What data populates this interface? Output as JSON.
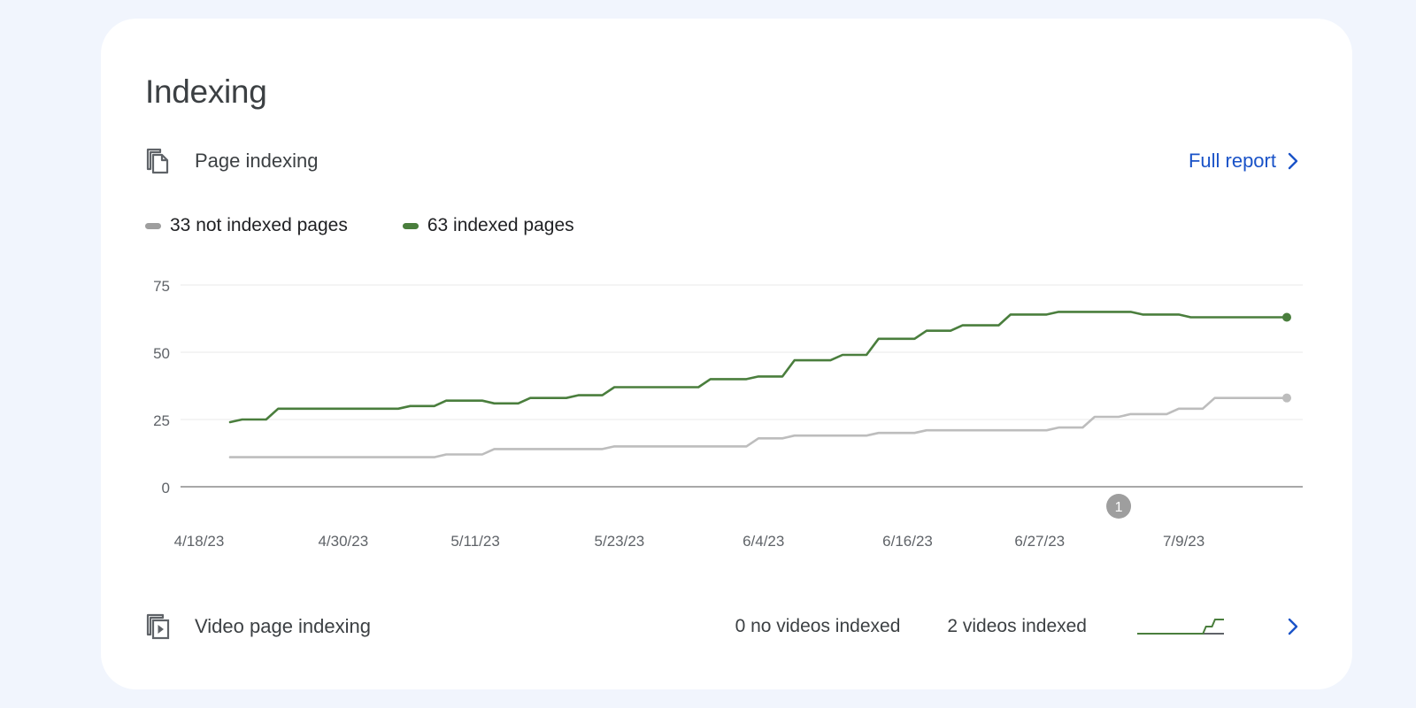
{
  "card": {
    "title": "Indexing"
  },
  "page_indexing": {
    "label": "Page indexing",
    "full_report_label": "Full report",
    "legend": [
      {
        "label": "33 not indexed pages",
        "color": "#9e9e9e"
      },
      {
        "label": "63 indexed pages",
        "color": "#4a7e3d"
      }
    ]
  },
  "video_indexing": {
    "label": "Video page indexing",
    "no_videos_label": "0 no videos indexed",
    "videos_label": "2 videos indexed"
  },
  "chart_data": {
    "type": "line",
    "title": "Page indexing",
    "ylim": [
      0,
      75
    ],
    "yticks": [
      "75",
      "50",
      "25",
      "0"
    ],
    "ytick_values": [
      75,
      50,
      25,
      0
    ],
    "xtick_labels": [
      "4/18/23",
      "4/30/23",
      "5/11/23",
      "5/23/23",
      "6/4/23",
      "6/16/23",
      "6/27/23",
      "7/9/23"
    ],
    "xtick_index": [
      0,
      12,
      23,
      35,
      47,
      59,
      70,
      82
    ],
    "annotation": {
      "label": "1",
      "index": 74
    },
    "series": [
      {
        "name": "63 indexed pages",
        "color": "#4a7e3d",
        "values": [
          24,
          25,
          25,
          25,
          29,
          29,
          29,
          29,
          29,
          29,
          29,
          29,
          29,
          29,
          29,
          30,
          30,
          30,
          32,
          32,
          32,
          32,
          31,
          31,
          31,
          33,
          33,
          33,
          33,
          34,
          34,
          34,
          37,
          37,
          37,
          37,
          37,
          37,
          37,
          37,
          40,
          40,
          40,
          40,
          41,
          41,
          41,
          47,
          47,
          47,
          47,
          49,
          49,
          49,
          55,
          55,
          55,
          55,
          58,
          58,
          58,
          60,
          60,
          60,
          60,
          64,
          64,
          64,
          64,
          65,
          65,
          65,
          65,
          65,
          65,
          65,
          64,
          64,
          64,
          64,
          63,
          63,
          63,
          63,
          63,
          63,
          63,
          63,
          63
        ]
      },
      {
        "name": "33 not indexed pages",
        "color": "#bdbdbd",
        "values": [
          11,
          11,
          11,
          11,
          11,
          11,
          11,
          11,
          11,
          11,
          11,
          11,
          11,
          11,
          11,
          11,
          11,
          11,
          12,
          12,
          12,
          12,
          14,
          14,
          14,
          14,
          14,
          14,
          14,
          14,
          14,
          14,
          15,
          15,
          15,
          15,
          15,
          15,
          15,
          15,
          15,
          15,
          15,
          15,
          18,
          18,
          18,
          19,
          19,
          19,
          19,
          19,
          19,
          19,
          20,
          20,
          20,
          20,
          21,
          21,
          21,
          21,
          21,
          21,
          21,
          21,
          21,
          21,
          21,
          22,
          22,
          22,
          26,
          26,
          26,
          27,
          27,
          27,
          27,
          29,
          29,
          29,
          33,
          33,
          33,
          33,
          33,
          33,
          33
        ]
      }
    ]
  },
  "video_sparkline": {
    "type": "line",
    "series": [
      {
        "name": "2 videos indexed",
        "values": [
          0,
          0,
          0,
          0,
          0,
          0,
          0,
          0,
          0,
          0,
          0,
          0,
          0,
          0,
          0,
          0,
          0,
          0,
          0,
          0,
          0,
          0,
          0,
          1,
          1,
          1,
          2,
          2,
          2,
          2
        ],
        "color": "#4a7e3d"
      },
      {
        "name": "0 no videos indexed",
        "values": [
          0,
          0,
          0,
          0,
          0,
          0,
          0,
          0,
          0,
          0,
          0,
          0,
          0,
          0,
          0,
          0,
          0,
          0,
          0,
          0,
          0,
          0,
          0,
          0,
          0,
          0,
          0,
          0,
          0,
          0
        ],
        "color": "#5f6368"
      }
    ]
  }
}
